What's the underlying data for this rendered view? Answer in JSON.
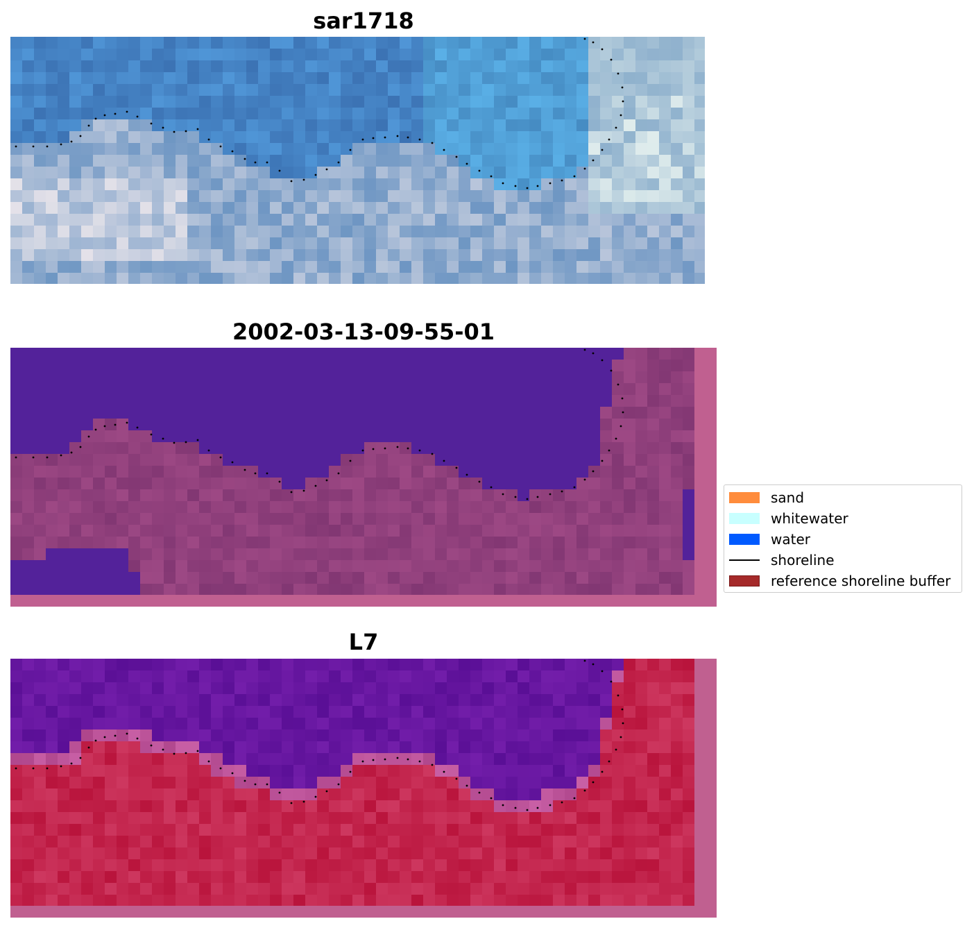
{
  "panels": [
    {
      "title": "sar1718",
      "kind": "rgb"
    },
    {
      "title": "2002-03-13-09-55-01",
      "kind": "classified"
    },
    {
      "title": "L7",
      "kind": "index"
    }
  ],
  "legend": {
    "items": [
      {
        "label": "sand",
        "color": "#ff8c3c",
        "kind": "patch"
      },
      {
        "label": "whitewater",
        "color": "#c8ffff",
        "kind": "patch"
      },
      {
        "label": "water",
        "color": "#005aff",
        "kind": "patch"
      },
      {
        "label": "shoreline",
        "color": "#000000",
        "kind": "line"
      },
      {
        "label": "reference shoreline buffer",
        "color": "#a52a2a",
        "kind": "patch"
      }
    ]
  },
  "colors": {
    "water_class": "#53229a",
    "land_class": "#a44e8c",
    "index_water": "#6a1aa0",
    "index_land": "#c41f4e",
    "frame_pink": "#c06090"
  }
}
